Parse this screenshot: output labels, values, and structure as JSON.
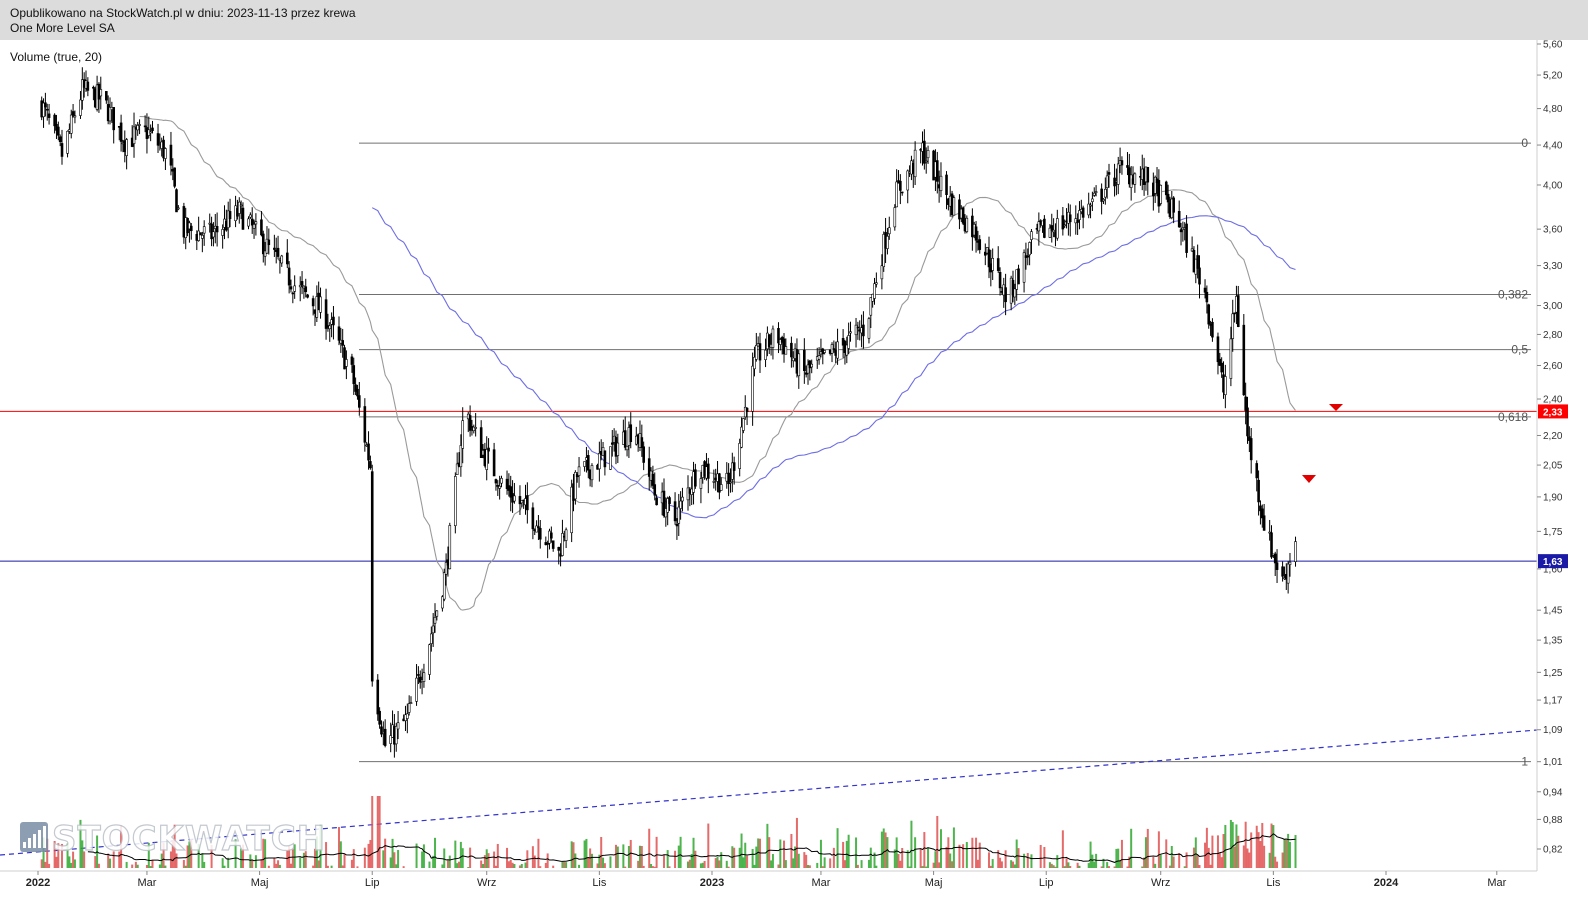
{
  "header": {
    "line1": "Opublikowano na StockWatch.pl w dniu: 2023-11-13 przez krewa",
    "line2": "One More Level SA"
  },
  "indicator_label": "Volume (true, 20)",
  "watermark": "STOCKWATCH",
  "colors": {
    "candle": "#000000",
    "ma_gray": "#9a9a9a",
    "ma_blue": "#6d6de6",
    "fib": "#707070",
    "resistance": "#ff0000",
    "support": "#1a1aa6",
    "trend_dashed": "#3333cc",
    "vol_up": "#2fa82f",
    "vol_down": "#e05050",
    "vol_ma": "#000000",
    "arrow": "#e00000"
  },
  "chart_data": {
    "type": "candlestick",
    "y_scale": "log",
    "y_range": [
      0.78,
      5.7
    ],
    "y_ticks": [
      "5,60",
      "5,20",
      "4,80",
      "4,40",
      "4,00",
      "3,60",
      "3,30",
      "3,00",
      "2,80",
      "2,60",
      "2,40",
      "2,20",
      "2,05",
      "1,90",
      "1,75",
      "1,60",
      "1,45",
      "1,35",
      "1,25",
      "1,17",
      "1,09",
      "1,01",
      "0,94",
      "0,88",
      "0,82"
    ],
    "x_labels": [
      "2022",
      "Mar",
      "Maj",
      "Lip",
      "Wrz",
      "Lis",
      "2023",
      "Mar",
      "Maj",
      "Lip",
      "Wrz",
      "Lis",
      "2024",
      "Mar"
    ],
    "horizontal_levels": [
      {
        "label": "2,33",
        "value": 2.33,
        "style": "resistance"
      },
      {
        "label": "1,63",
        "value": 1.63,
        "style": "support"
      }
    ],
    "fibonacci": [
      {
        "label": "0",
        "value": 4.42
      },
      {
        "label": "0,382",
        "value": 3.08
      },
      {
        "label": "0,5",
        "value": 2.7
      },
      {
        "label": "0,618",
        "value": 2.3
      },
      {
        "label": "1",
        "value": 1.01
      }
    ],
    "price_path": [
      {
        "date": "2022-01-03",
        "close": 4.85
      },
      {
        "date": "2022-01-14",
        "close": 4.3
      },
      {
        "date": "2022-01-25",
        "close": 5.02
      },
      {
        "date": "2022-02-05",
        "close": 4.9
      },
      {
        "date": "2022-02-17",
        "close": 4.45
      },
      {
        "date": "2022-03-01",
        "close": 4.55
      },
      {
        "date": "2022-03-12",
        "close": 4.3
      },
      {
        "date": "2022-03-20",
        "close": 3.6
      },
      {
        "date": "2022-04-05",
        "close": 3.55
      },
      {
        "date": "2022-04-20",
        "close": 3.75
      },
      {
        "date": "2022-05-05",
        "close": 3.45
      },
      {
        "date": "2022-05-20",
        "close": 3.15
      },
      {
        "date": "2022-06-05",
        "close": 2.95
      },
      {
        "date": "2022-06-20",
        "close": 2.55
      },
      {
        "date": "2022-06-30",
        "close": 2.05
      },
      {
        "date": "2022-07-01",
        "close": 1.25
      },
      {
        "date": "2022-07-08",
        "close": 1.05
      },
      {
        "date": "2022-07-20",
        "close": 1.12
      },
      {
        "date": "2022-07-30",
        "close": 1.3
      },
      {
        "date": "2022-08-10",
        "close": 1.6
      },
      {
        "date": "2022-08-20",
        "close": 2.35
      },
      {
        "date": "2022-08-28",
        "close": 2.15
      },
      {
        "date": "2022-09-10",
        "close": 1.95
      },
      {
        "date": "2022-09-25",
        "close": 1.82
      },
      {
        "date": "2022-10-10",
        "close": 1.66
      },
      {
        "date": "2022-10-20",
        "close": 2.0
      },
      {
        "date": "2022-11-05",
        "close": 2.1
      },
      {
        "date": "2022-11-20",
        "close": 2.25
      },
      {
        "date": "2022-12-01",
        "close": 1.92
      },
      {
        "date": "2022-12-12",
        "close": 1.8
      },
      {
        "date": "2022-12-25",
        "close": 2.05
      },
      {
        "date": "2023-01-10",
        "close": 1.95
      },
      {
        "date": "2023-01-25",
        "close": 2.65
      },
      {
        "date": "2023-02-05",
        "close": 2.8
      },
      {
        "date": "2023-02-20",
        "close": 2.55
      },
      {
        "date": "2023-03-10",
        "close": 2.7
      },
      {
        "date": "2023-03-25",
        "close": 2.85
      },
      {
        "date": "2023-04-10",
        "close": 3.9
      },
      {
        "date": "2023-04-25",
        "close": 4.35
      },
      {
        "date": "2023-05-10",
        "close": 3.85
      },
      {
        "date": "2023-05-25",
        "close": 3.55
      },
      {
        "date": "2023-06-10",
        "close": 3.05
      },
      {
        "date": "2023-06-25",
        "close": 3.55
      },
      {
        "date": "2023-07-10",
        "close": 3.65
      },
      {
        "date": "2023-07-25",
        "close": 3.8
      },
      {
        "date": "2023-08-10",
        "close": 4.15
      },
      {
        "date": "2023-08-25",
        "close": 4.05
      },
      {
        "date": "2023-09-10",
        "close": 3.7
      },
      {
        "date": "2023-09-25",
        "close": 3.1
      },
      {
        "date": "2023-10-05",
        "close": 2.45
      },
      {
        "date": "2023-10-12",
        "close": 3.05
      },
      {
        "date": "2023-10-18",
        "close": 2.2
      },
      {
        "date": "2023-10-28",
        "close": 1.75
      },
      {
        "date": "2023-11-06",
        "close": 1.55
      },
      {
        "date": "2023-11-13",
        "close": 1.72
      }
    ]
  }
}
